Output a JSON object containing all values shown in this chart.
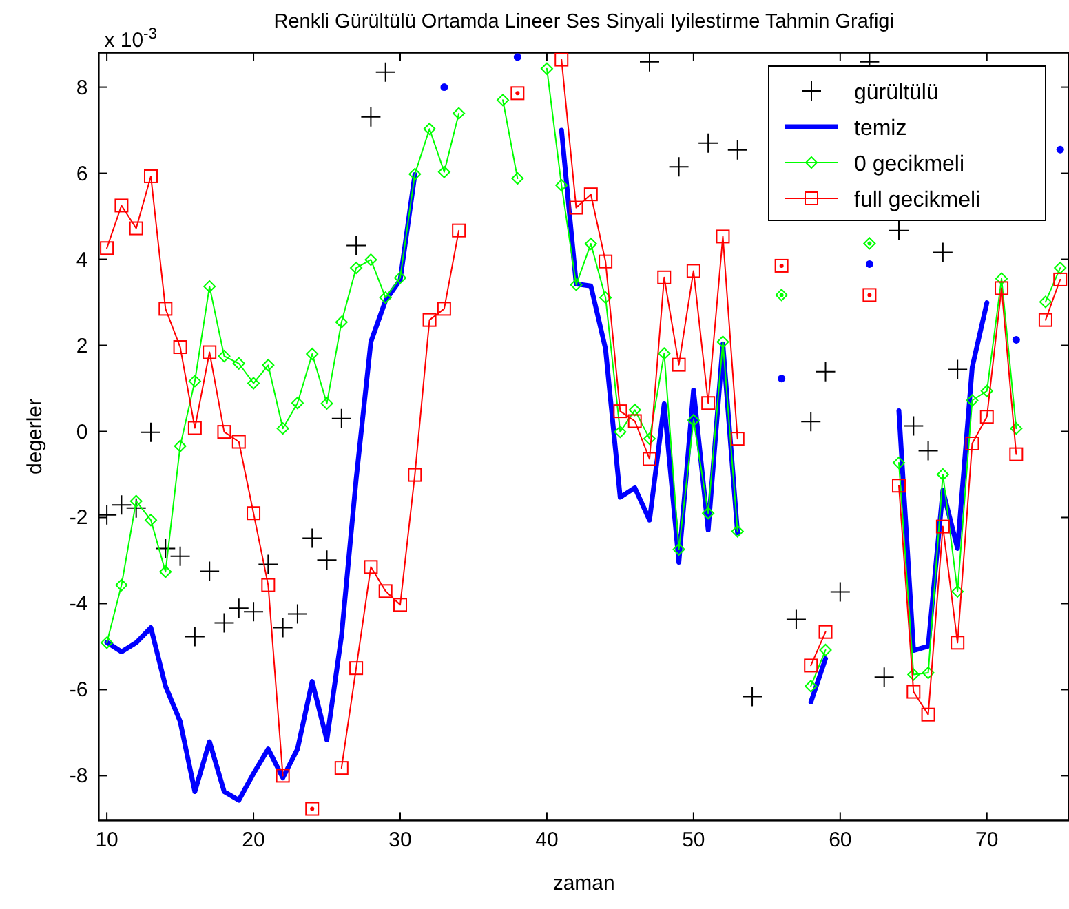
{
  "chart_data": {
    "type": "line",
    "title": "Renkli Gürültülü Ortamda Lineer Ses Sinyali Iyilestirme Tahmin Grafigi",
    "xlabel": "zaman",
    "ylabel": "degerler",
    "annotations": [
      "x 10$^{-3}$"
    ],
    "x": [
      10,
      11,
      12,
      13,
      14,
      15,
      16,
      17,
      18,
      19,
      20,
      21,
      22,
      23,
      24,
      25,
      26,
      27,
      28,
      29,
      30,
      31,
      32,
      33,
      34,
      35,
      36,
      37,
      38,
      39,
      40,
      41,
      42,
      43,
      44,
      45,
      46,
      47,
      48,
      49,
      50,
      51,
      52,
      53,
      54,
      55,
      56,
      57,
      58,
      59,
      60,
      61,
      62,
      63,
      64,
      65,
      66,
      67,
      68,
      69,
      70,
      71,
      72,
      73,
      74,
      75
    ],
    "xlim": [
      9.45,
      75.6
    ],
    "ylim": [
      -9.04,
      8.8
    ],
    "xticks": [
      10,
      20,
      30,
      40,
      50,
      60,
      70
    ],
    "yticks": [
      -8,
      -6,
      -4,
      -2,
      0,
      2,
      4,
      6,
      8
    ],
    "legend": "top right",
    "series": [
      {
        "name": "gürültülü",
        "type": "scatter",
        "marker": "cross",
        "color": "#000000",
        "values": [
          -1.94,
          -1.71,
          -1.78,
          -0.02,
          -2.72,
          -2.9,
          -4.77,
          -3.25,
          -4.45,
          -4.11,
          -4.19,
          -3.09,
          -4.56,
          -4.24,
          -2.48,
          -2.99,
          0.3,
          4.32,
          7.31,
          8.35,
          null,
          null,
          null,
          null,
          null,
          null,
          null,
          null,
          null,
          null,
          null,
          null,
          null,
          null,
          null,
          null,
          null,
          8.59,
          null,
          6.15,
          null,
          6.7,
          null,
          6.54,
          -6.16,
          null,
          null,
          -4.37,
          0.23,
          1.39,
          -3.73,
          null,
          8.59,
          -5.71,
          4.67,
          0.13,
          -0.45,
          4.16,
          1.44,
          null,
          null,
          null,
          null,
          null,
          null,
          null
        ]
      },
      {
        "name": "temiz",
        "type": "line",
        "marker": "none",
        "color": "#0000ff",
        "values": [
          -4.9,
          -5.12,
          -4.91,
          -4.56,
          -5.92,
          -6.74,
          -8.37,
          -7.21,
          -8.37,
          -8.57,
          -7.95,
          -7.38,
          -8.05,
          -7.38,
          -5.81,
          -7.17,
          -4.75,
          -1.1,
          2.08,
          3.04,
          3.52,
          5.97,
          null,
          8.0,
          null,
          null,
          null,
          null,
          8.7,
          null,
          null,
          7.0,
          3.43,
          3.38,
          1.92,
          -1.53,
          -1.31,
          -2.06,
          0.64,
          -3.04,
          0.96,
          -2.29,
          2.03,
          -2.36,
          null,
          null,
          1.23,
          null,
          -6.29,
          -5.28,
          null,
          null,
          3.89,
          null,
          0.48,
          -5.09,
          -4.99,
          -1.37,
          -2.72,
          1.49,
          2.99,
          null,
          2.13,
          null,
          null,
          6.55
        ]
      },
      {
        "name": "0 gecikmeli",
        "type": "line",
        "marker": "diamond",
        "color": "#00ff00",
        "values": [
          -4.91,
          -3.57,
          -1.62,
          -2.06,
          -3.26,
          -0.34,
          1.17,
          3.37,
          1.75,
          1.58,
          1.12,
          1.54,
          0.07,
          0.66,
          1.8,
          0.65,
          2.54,
          3.8,
          3.99,
          3.11,
          3.57,
          5.98,
          7.03,
          6.03,
          7.39,
          null,
          null,
          7.7,
          5.88,
          null,
          8.43,
          5.72,
          3.41,
          4.36,
          3.11,
          -0.01,
          0.5,
          -0.17,
          1.81,
          -2.74,
          0.26,
          -1.9,
          2.08,
          -2.32,
          null,
          null,
          3.17,
          null,
          -5.92,
          -5.08,
          null,
          null,
          4.37,
          null,
          -0.73,
          -5.65,
          -5.61,
          -1.0,
          -3.72,
          0.72,
          0.94,
          3.55,
          0.07,
          null,
          3.01,
          3.8
        ]
      },
      {
        "name": "full gecikmeli",
        "type": "line",
        "marker": "square",
        "color": "#ff0000",
        "values": [
          4.26,
          5.25,
          4.72,
          5.93,
          2.85,
          1.96,
          0.08,
          1.84,
          -0.01,
          -0.24,
          -1.9,
          -3.57,
          -8.0,
          null,
          -8.77,
          null,
          -7.82,
          -5.5,
          -3.15,
          -3.71,
          -4.03,
          -1.01,
          2.59,
          2.85,
          4.67,
          null,
          null,
          null,
          7.86,
          null,
          null,
          8.64,
          5.2,
          5.51,
          3.95,
          0.47,
          0.24,
          -0.64,
          3.58,
          1.55,
          3.73,
          0.66,
          4.53,
          -0.17,
          null,
          null,
          3.85,
          null,
          -5.44,
          -4.66,
          null,
          null,
          3.17,
          null,
          -1.26,
          -6.05,
          -6.58,
          -2.21,
          -4.91,
          -0.28,
          0.34,
          3.33,
          -0.53,
          null,
          2.59,
          3.53
        ]
      }
    ]
  }
}
